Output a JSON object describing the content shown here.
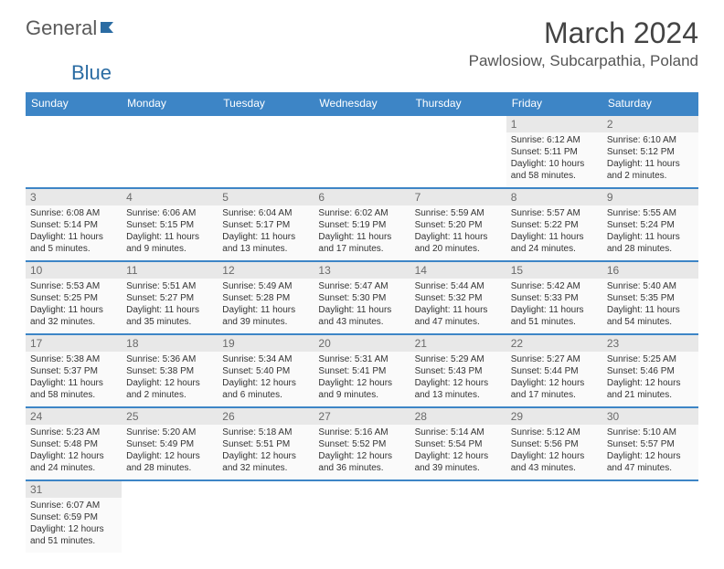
{
  "logo": {
    "text1": "General",
    "text2": "Blue"
  },
  "title": "March 2024",
  "location": "Pawlosiow, Subcarpathia, Poland",
  "colors": {
    "header_bg": "#3d85c6",
    "header_text": "#ffffff",
    "cell_border": "#3d85c6",
    "daynum_bg": "#e8e8e8",
    "page_bg": "#ffffff",
    "logo_gray": "#5a5a5a",
    "logo_blue": "#2b6ca3"
  },
  "day_headers": [
    "Sunday",
    "Monday",
    "Tuesday",
    "Wednesday",
    "Thursday",
    "Friday",
    "Saturday"
  ],
  "weeks": [
    [
      null,
      null,
      null,
      null,
      null,
      {
        "num": "1",
        "sunrise": "Sunrise: 6:12 AM",
        "sunset": "Sunset: 5:11 PM",
        "daylight": "Daylight: 10 hours and 58 minutes."
      },
      {
        "num": "2",
        "sunrise": "Sunrise: 6:10 AM",
        "sunset": "Sunset: 5:12 PM",
        "daylight": "Daylight: 11 hours and 2 minutes."
      }
    ],
    [
      {
        "num": "3",
        "sunrise": "Sunrise: 6:08 AM",
        "sunset": "Sunset: 5:14 PM",
        "daylight": "Daylight: 11 hours and 5 minutes."
      },
      {
        "num": "4",
        "sunrise": "Sunrise: 6:06 AM",
        "sunset": "Sunset: 5:15 PM",
        "daylight": "Daylight: 11 hours and 9 minutes."
      },
      {
        "num": "5",
        "sunrise": "Sunrise: 6:04 AM",
        "sunset": "Sunset: 5:17 PM",
        "daylight": "Daylight: 11 hours and 13 minutes."
      },
      {
        "num": "6",
        "sunrise": "Sunrise: 6:02 AM",
        "sunset": "Sunset: 5:19 PM",
        "daylight": "Daylight: 11 hours and 17 minutes."
      },
      {
        "num": "7",
        "sunrise": "Sunrise: 5:59 AM",
        "sunset": "Sunset: 5:20 PM",
        "daylight": "Daylight: 11 hours and 20 minutes."
      },
      {
        "num": "8",
        "sunrise": "Sunrise: 5:57 AM",
        "sunset": "Sunset: 5:22 PM",
        "daylight": "Daylight: 11 hours and 24 minutes."
      },
      {
        "num": "9",
        "sunrise": "Sunrise: 5:55 AM",
        "sunset": "Sunset: 5:24 PM",
        "daylight": "Daylight: 11 hours and 28 minutes."
      }
    ],
    [
      {
        "num": "10",
        "sunrise": "Sunrise: 5:53 AM",
        "sunset": "Sunset: 5:25 PM",
        "daylight": "Daylight: 11 hours and 32 minutes."
      },
      {
        "num": "11",
        "sunrise": "Sunrise: 5:51 AM",
        "sunset": "Sunset: 5:27 PM",
        "daylight": "Daylight: 11 hours and 35 minutes."
      },
      {
        "num": "12",
        "sunrise": "Sunrise: 5:49 AM",
        "sunset": "Sunset: 5:28 PM",
        "daylight": "Daylight: 11 hours and 39 minutes."
      },
      {
        "num": "13",
        "sunrise": "Sunrise: 5:47 AM",
        "sunset": "Sunset: 5:30 PM",
        "daylight": "Daylight: 11 hours and 43 minutes."
      },
      {
        "num": "14",
        "sunrise": "Sunrise: 5:44 AM",
        "sunset": "Sunset: 5:32 PM",
        "daylight": "Daylight: 11 hours and 47 minutes."
      },
      {
        "num": "15",
        "sunrise": "Sunrise: 5:42 AM",
        "sunset": "Sunset: 5:33 PM",
        "daylight": "Daylight: 11 hours and 51 minutes."
      },
      {
        "num": "16",
        "sunrise": "Sunrise: 5:40 AM",
        "sunset": "Sunset: 5:35 PM",
        "daylight": "Daylight: 11 hours and 54 minutes."
      }
    ],
    [
      {
        "num": "17",
        "sunrise": "Sunrise: 5:38 AM",
        "sunset": "Sunset: 5:37 PM",
        "daylight": "Daylight: 11 hours and 58 minutes."
      },
      {
        "num": "18",
        "sunrise": "Sunrise: 5:36 AM",
        "sunset": "Sunset: 5:38 PM",
        "daylight": "Daylight: 12 hours and 2 minutes."
      },
      {
        "num": "19",
        "sunrise": "Sunrise: 5:34 AM",
        "sunset": "Sunset: 5:40 PM",
        "daylight": "Daylight: 12 hours and 6 minutes."
      },
      {
        "num": "20",
        "sunrise": "Sunrise: 5:31 AM",
        "sunset": "Sunset: 5:41 PM",
        "daylight": "Daylight: 12 hours and 9 minutes."
      },
      {
        "num": "21",
        "sunrise": "Sunrise: 5:29 AM",
        "sunset": "Sunset: 5:43 PM",
        "daylight": "Daylight: 12 hours and 13 minutes."
      },
      {
        "num": "22",
        "sunrise": "Sunrise: 5:27 AM",
        "sunset": "Sunset: 5:44 PM",
        "daylight": "Daylight: 12 hours and 17 minutes."
      },
      {
        "num": "23",
        "sunrise": "Sunrise: 5:25 AM",
        "sunset": "Sunset: 5:46 PM",
        "daylight": "Daylight: 12 hours and 21 minutes."
      }
    ],
    [
      {
        "num": "24",
        "sunrise": "Sunrise: 5:23 AM",
        "sunset": "Sunset: 5:48 PM",
        "daylight": "Daylight: 12 hours and 24 minutes."
      },
      {
        "num": "25",
        "sunrise": "Sunrise: 5:20 AM",
        "sunset": "Sunset: 5:49 PM",
        "daylight": "Daylight: 12 hours and 28 minutes."
      },
      {
        "num": "26",
        "sunrise": "Sunrise: 5:18 AM",
        "sunset": "Sunset: 5:51 PM",
        "daylight": "Daylight: 12 hours and 32 minutes."
      },
      {
        "num": "27",
        "sunrise": "Sunrise: 5:16 AM",
        "sunset": "Sunset: 5:52 PM",
        "daylight": "Daylight: 12 hours and 36 minutes."
      },
      {
        "num": "28",
        "sunrise": "Sunrise: 5:14 AM",
        "sunset": "Sunset: 5:54 PM",
        "daylight": "Daylight: 12 hours and 39 minutes."
      },
      {
        "num": "29",
        "sunrise": "Sunrise: 5:12 AM",
        "sunset": "Sunset: 5:56 PM",
        "daylight": "Daylight: 12 hours and 43 minutes."
      },
      {
        "num": "30",
        "sunrise": "Sunrise: 5:10 AM",
        "sunset": "Sunset: 5:57 PM",
        "daylight": "Daylight: 12 hours and 47 minutes."
      }
    ],
    [
      {
        "num": "31",
        "sunrise": "Sunrise: 6:07 AM",
        "sunset": "Sunset: 6:59 PM",
        "daylight": "Daylight: 12 hours and 51 minutes."
      },
      null,
      null,
      null,
      null,
      null,
      null
    ]
  ]
}
